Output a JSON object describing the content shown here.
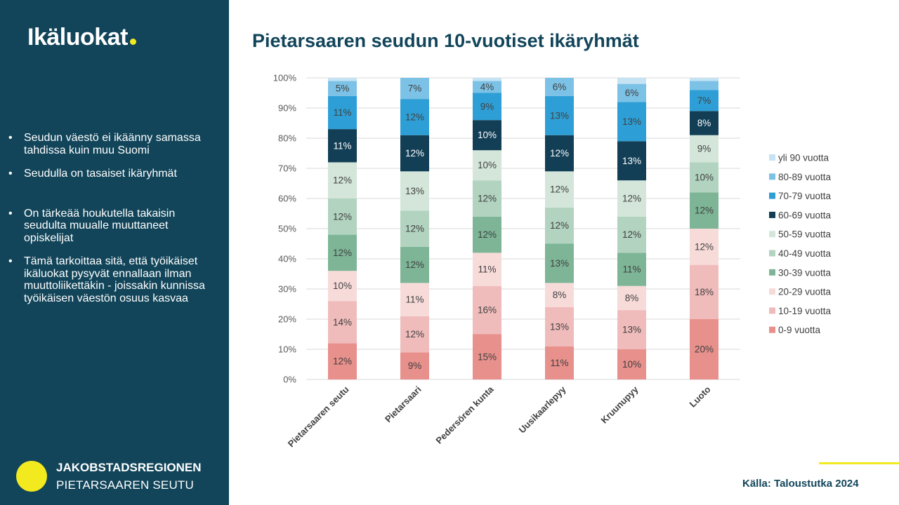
{
  "sidebar": {
    "title": "Ikäluokat",
    "bullets": [
      "Seudun väestö ei ikäänny samassa tahdissa kuin muu Suomi",
      "Seudulla on tasaiset ikäryhmät",
      "On tärkeää houkutella takaisin seudulta muualle muuttaneet opiskelijat",
      "Tämä tarkoittaa sitä, että työikäiset ikäluokat pysyvät ennallaan ilman muuttoliikettäkin - joissakin kunnissa työikäisen väestön osuus kasvaa"
    ],
    "logo_line1": "JAKOBSTADSREGIONEN",
    "logo_line2": "PIETARSAAREN SEUTU"
  },
  "source": "Källa: Taloustutka 2024",
  "colors": {
    "sidebar": "#12455a",
    "accent": "#f2ea1f"
  },
  "chart_data": {
    "type": "bar",
    "stacked": "percent",
    "title": "Pietarsaaren seudun 10-vuotiset ikäryhmät",
    "categories": [
      "Pietarsaaren seutu",
      "Pietarsaari",
      "Pedersören kunta",
      "Uusikaarlepyy",
      "Kruunupyy",
      "Luoto"
    ],
    "y_ticks": [
      "0%",
      "10%",
      "20%",
      "30%",
      "40%",
      "50%",
      "60%",
      "70%",
      "80%",
      "90%",
      "100%"
    ],
    "ylim": [
      0,
      100
    ],
    "legend_position": "right",
    "grid": true,
    "series": [
      {
        "name": "0-9 vuotta",
        "color": "#e8908c",
        "label_color": "#404040",
        "values": [
          12,
          9,
          15,
          11,
          10,
          20
        ],
        "labels": [
          "12%",
          "9%",
          "15%",
          "11%",
          "10%",
          "20%"
        ]
      },
      {
        "name": "10-19 vuotta",
        "color": "#f0bcbb",
        "label_color": "#404040",
        "values": [
          14,
          12,
          16,
          13,
          13,
          18
        ],
        "labels": [
          "14%",
          "12%",
          "16%",
          "13%",
          "13%",
          "18%"
        ]
      },
      {
        "name": "20-29 vuotta",
        "color": "#f7dbd9",
        "label_color": "#404040",
        "values": [
          10,
          11,
          11,
          8,
          8,
          12
        ],
        "labels": [
          "10%",
          "11%",
          "11%",
          "8%",
          "8%",
          "12%"
        ]
      },
      {
        "name": "30-39 vuotta",
        "color": "#7db596",
        "label_color": "#404040",
        "values": [
          12,
          12,
          12,
          13,
          11,
          12
        ],
        "labels": [
          "12%",
          "12%",
          "12%",
          "13%",
          "11%",
          "12%"
        ]
      },
      {
        "name": "40-49 vuotta",
        "color": "#b1d3bf",
        "label_color": "#404040",
        "values": [
          12,
          12,
          12,
          12,
          12,
          10
        ],
        "labels": [
          "12%",
          "12%",
          "12%",
          "12%",
          "12%",
          "10%"
        ]
      },
      {
        "name": "50-59 vuotta",
        "color": "#d3e6d9",
        "label_color": "#404040",
        "values": [
          12,
          13,
          10,
          12,
          12,
          9
        ],
        "labels": [
          "12%",
          "13%",
          "10%",
          "12%",
          "12%",
          "9%"
        ]
      },
      {
        "name": "60-69 vuotta",
        "color": "#123f56",
        "label_color": "#ffffff",
        "values": [
          11,
          12,
          10,
          12,
          13,
          8
        ],
        "labels": [
          "11%",
          "12%",
          "10%",
          "12%",
          "13%",
          "8%"
        ]
      },
      {
        "name": "70-79 vuotta",
        "color": "#2e9fd6",
        "label_color": "#404040",
        "values": [
          11,
          12,
          9,
          13,
          13,
          7
        ],
        "labels": [
          "11%",
          "12%",
          "9%",
          "13%",
          "13%",
          "7%"
        ]
      },
      {
        "name": "80-89 vuotta",
        "color": "#7cc2e6",
        "label_color": "#404040",
        "values": [
          5,
          7,
          4,
          6,
          6,
          3
        ],
        "labels": [
          "5%",
          "7%",
          "4%",
          "6%",
          "6%",
          ""
        ]
      },
      {
        "name": "yli 90 vuotta",
        "color": "#c5e3f3",
        "label_color": "#404040",
        "values": [
          1,
          0,
          1,
          0,
          2,
          1
        ],
        "labels": [
          "",
          "",
          "",
          "",
          "",
          ""
        ]
      }
    ]
  }
}
